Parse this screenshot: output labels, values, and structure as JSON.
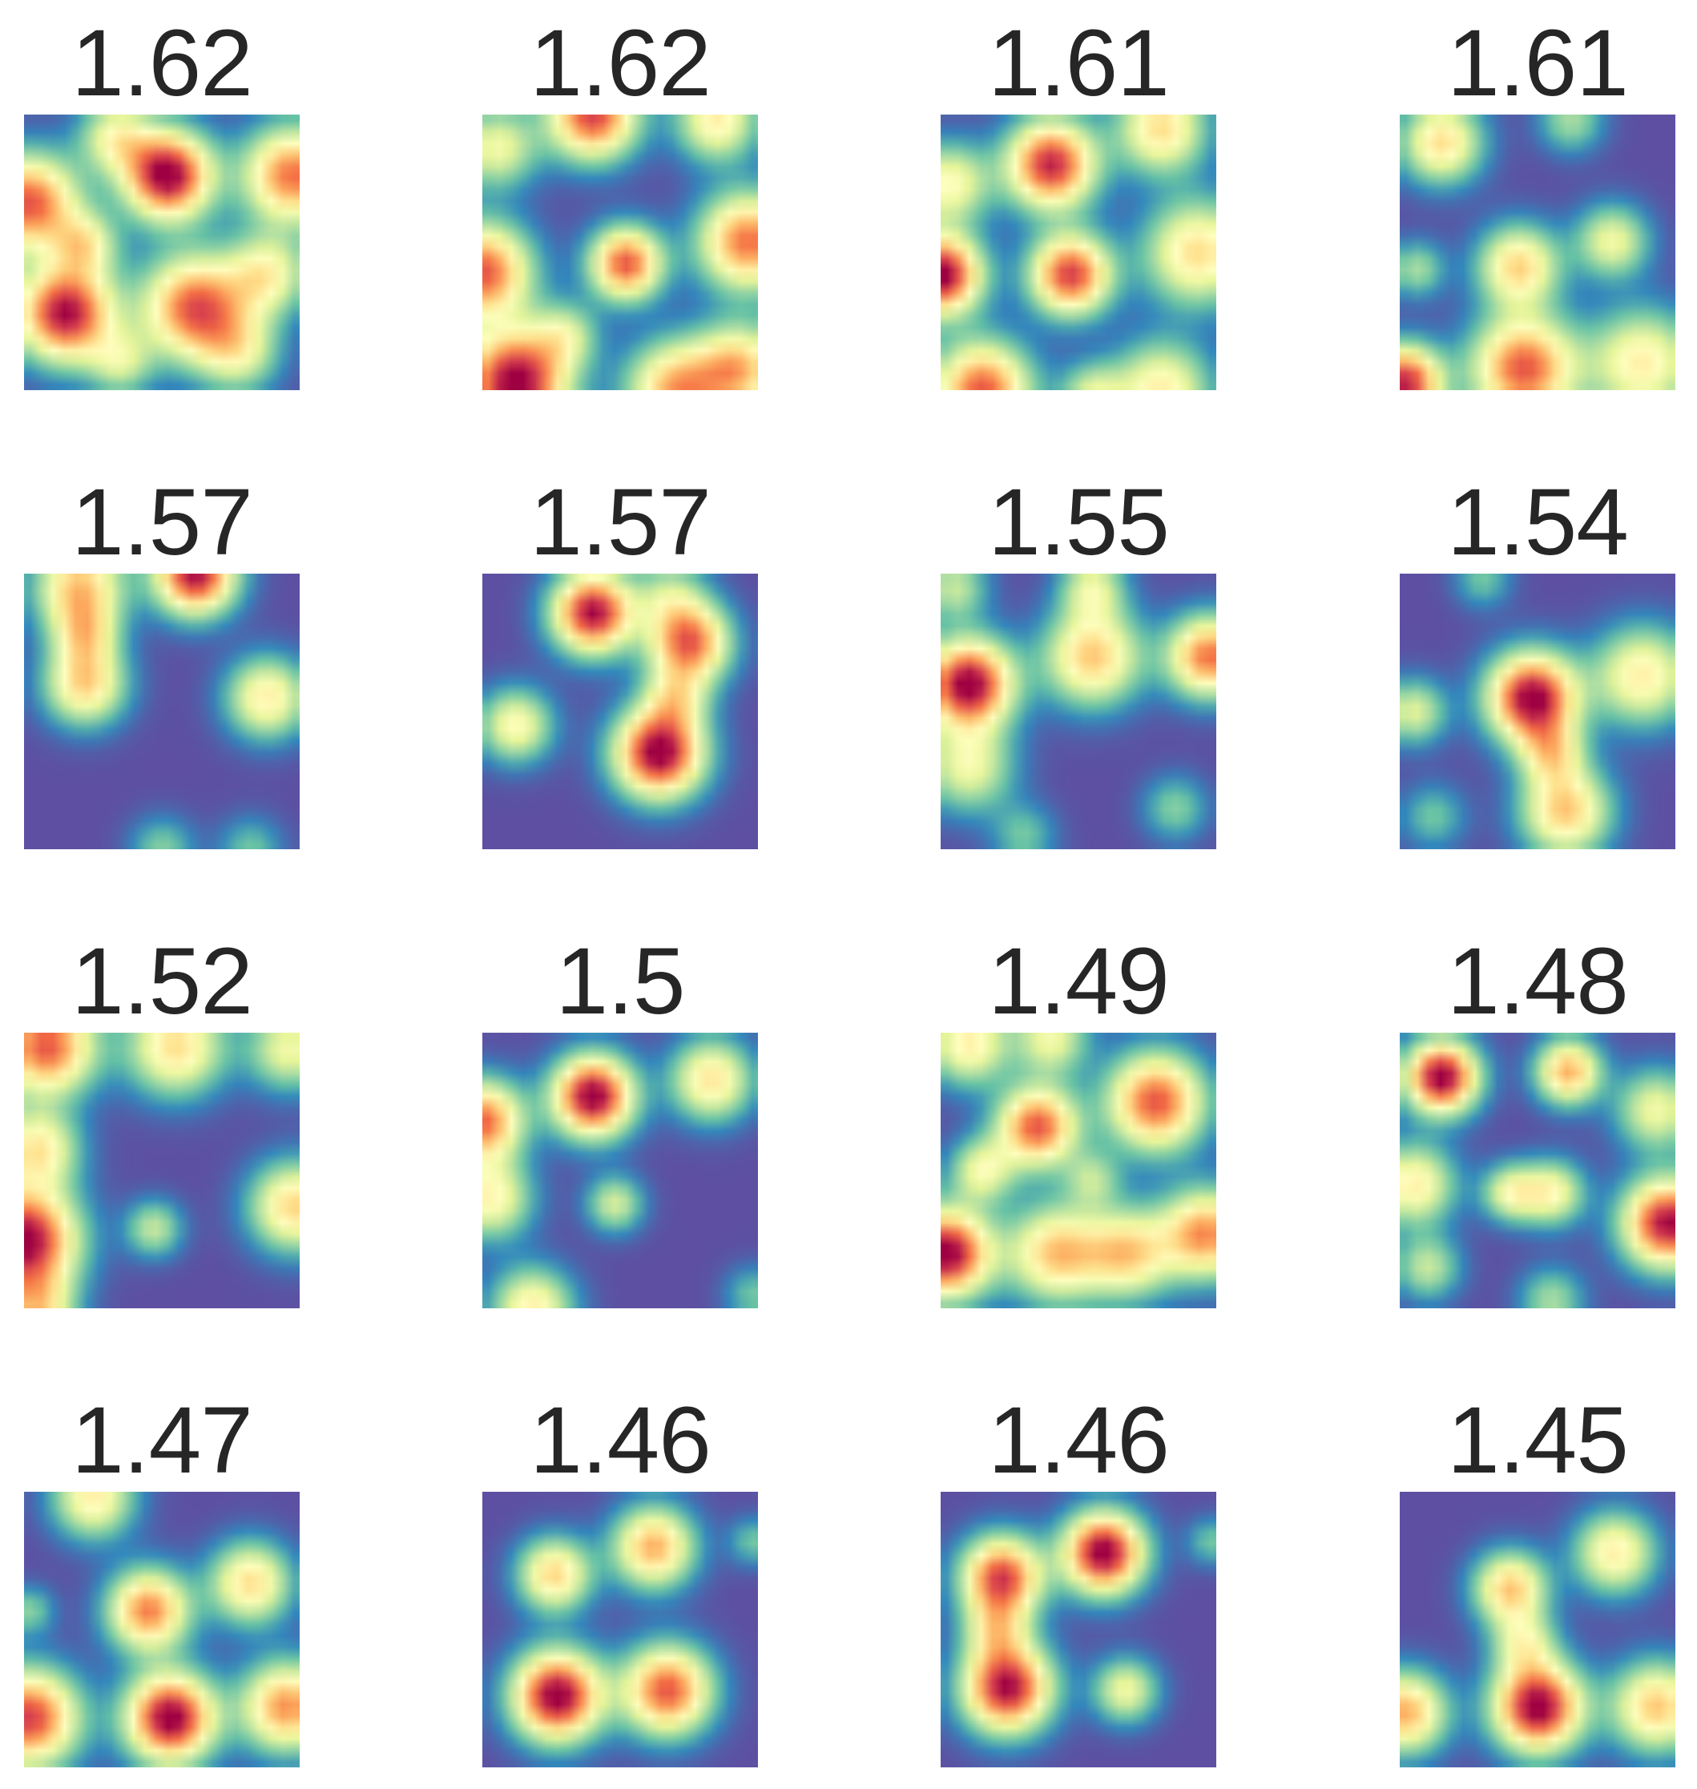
{
  "chart_data": {
    "type": "heatmap",
    "layout": {
      "rows": 4,
      "cols": 4
    },
    "colormap": [
      "#5e4fa2",
      "#3288bd",
      "#66c2a5",
      "#abdda4",
      "#e6f598",
      "#ffffbf",
      "#fee08b",
      "#fdae61",
      "#f46d43",
      "#d53e4f",
      "#9e0142"
    ],
    "background_color": "#5e4fa2",
    "title_color": "#262626",
    "axes_visible": false,
    "panels": [
      {
        "title": "1.62",
        "blobs": [
          {
            "x": 0.52,
            "y": 0.22,
            "a": 1.05,
            "s": 0.11
          },
          {
            "x": 0.15,
            "y": 0.72,
            "a": 1.0,
            "s": 0.12
          },
          {
            "x": 0.62,
            "y": 0.7,
            "a": 0.85,
            "s": 0.13
          },
          {
            "x": 0.02,
            "y": 0.32,
            "a": 0.85,
            "s": 0.12
          },
          {
            "x": 0.97,
            "y": 0.22,
            "a": 0.8,
            "s": 0.12
          },
          {
            "x": 0.33,
            "y": 0.08,
            "a": 0.45,
            "s": 0.09
          },
          {
            "x": 0.22,
            "y": 0.47,
            "a": 0.45,
            "s": 0.08
          },
          {
            "x": 0.88,
            "y": 0.58,
            "a": 0.5,
            "s": 0.1
          },
          {
            "x": 0.35,
            "y": 0.9,
            "a": 0.35,
            "s": 0.08
          },
          {
            "x": 0.78,
            "y": 0.86,
            "a": 0.4,
            "s": 0.1
          }
        ]
      },
      {
        "title": "1.62",
        "blobs": [
          {
            "x": 0.4,
            "y": 0.0,
            "a": 0.9,
            "s": 0.11
          },
          {
            "x": 0.85,
            "y": 0.02,
            "a": 0.55,
            "s": 0.1
          },
          {
            "x": 0.0,
            "y": 0.57,
            "a": 0.85,
            "s": 0.12
          },
          {
            "x": 0.52,
            "y": 0.54,
            "a": 0.85,
            "s": 0.09
          },
          {
            "x": 0.96,
            "y": 0.46,
            "a": 0.8,
            "s": 0.12
          },
          {
            "x": 0.12,
            "y": 0.97,
            "a": 1.05,
            "s": 0.13
          },
          {
            "x": 0.7,
            "y": 1.0,
            "a": 0.7,
            "s": 0.12
          },
          {
            "x": 0.93,
            "y": 0.92,
            "a": 0.65,
            "s": 0.11
          },
          {
            "x": 0.05,
            "y": 0.12,
            "a": 0.45,
            "s": 0.1
          },
          {
            "x": 0.3,
            "y": 0.8,
            "a": 0.35,
            "s": 0.08
          }
        ]
      },
      {
        "title": "1.61",
        "blobs": [
          {
            "x": 0.4,
            "y": 0.18,
            "a": 0.95,
            "s": 0.11
          },
          {
            "x": 0.8,
            "y": 0.05,
            "a": 0.6,
            "s": 0.11
          },
          {
            "x": 0.0,
            "y": 0.58,
            "a": 1.05,
            "s": 0.1
          },
          {
            "x": 0.47,
            "y": 0.58,
            "a": 0.9,
            "s": 0.1
          },
          {
            "x": 0.93,
            "y": 0.5,
            "a": 0.6,
            "s": 0.13
          },
          {
            "x": 0.15,
            "y": 1.0,
            "a": 0.85,
            "s": 0.12
          },
          {
            "x": 0.8,
            "y": 1.0,
            "a": 0.55,
            "s": 0.12
          },
          {
            "x": 0.03,
            "y": 0.25,
            "a": 0.5,
            "s": 0.1
          },
          {
            "x": 0.55,
            "y": 1.02,
            "a": 0.4,
            "s": 0.08
          }
        ]
      },
      {
        "title": "1.61",
        "blobs": [
          {
            "x": 0.15,
            "y": 0.1,
            "a": 0.6,
            "s": 0.1
          },
          {
            "x": 0.43,
            "y": 0.55,
            "a": 0.62,
            "s": 0.1
          },
          {
            "x": 0.77,
            "y": 0.46,
            "a": 0.45,
            "s": 0.09
          },
          {
            "x": 0.02,
            "y": 0.97,
            "a": 0.95,
            "s": 0.09
          },
          {
            "x": 0.45,
            "y": 0.92,
            "a": 0.85,
            "s": 0.13
          },
          {
            "x": 0.88,
            "y": 0.9,
            "a": 0.55,
            "s": 0.13
          },
          {
            "x": 0.06,
            "y": 0.56,
            "a": 0.3,
            "s": 0.07
          },
          {
            "x": 0.62,
            "y": 0.02,
            "a": 0.3,
            "s": 0.08
          }
        ]
      },
      {
        "title": "1.57",
        "blobs": [
          {
            "x": 0.2,
            "y": 0.05,
            "a": 0.65,
            "s": 0.11
          },
          {
            "x": 0.62,
            "y": 0.0,
            "a": 1.0,
            "s": 0.1
          },
          {
            "x": 0.22,
            "y": 0.4,
            "a": 0.62,
            "s": 0.1
          },
          {
            "x": 0.88,
            "y": 0.45,
            "a": 0.55,
            "s": 0.1
          },
          {
            "x": 0.22,
            "y": 0.22,
            "a": 0.4,
            "s": 0.08
          },
          {
            "x": 0.5,
            "y": 1.0,
            "a": 0.25,
            "s": 0.08
          },
          {
            "x": 0.82,
            "y": 1.0,
            "a": 0.22,
            "s": 0.08
          }
        ]
      },
      {
        "title": "1.57",
        "blobs": [
          {
            "x": 0.4,
            "y": 0.14,
            "a": 1.0,
            "s": 0.1
          },
          {
            "x": 0.75,
            "y": 0.25,
            "a": 0.82,
            "s": 0.1
          },
          {
            "x": 0.64,
            "y": 0.65,
            "a": 1.05,
            "s": 0.11
          },
          {
            "x": 0.12,
            "y": 0.55,
            "a": 0.5,
            "s": 0.09
          },
          {
            "x": 0.7,
            "y": 0.45,
            "a": 0.4,
            "s": 0.08
          },
          {
            "x": 0.68,
            "y": 0.08,
            "a": 0.3,
            "s": 0.09
          }
        ]
      },
      {
        "title": "1.55",
        "blobs": [
          {
            "x": 0.1,
            "y": 0.4,
            "a": 1.05,
            "s": 0.11
          },
          {
            "x": 0.55,
            "y": 0.3,
            "a": 0.65,
            "s": 0.12
          },
          {
            "x": 0.97,
            "y": 0.3,
            "a": 0.8,
            "s": 0.1
          },
          {
            "x": 0.1,
            "y": 0.7,
            "a": 0.45,
            "s": 0.11
          },
          {
            "x": 0.55,
            "y": 0.05,
            "a": 0.4,
            "s": 0.08
          },
          {
            "x": 0.05,
            "y": 0.05,
            "a": 0.35,
            "s": 0.08
          },
          {
            "x": 0.85,
            "y": 0.85,
            "a": 0.25,
            "s": 0.08
          },
          {
            "x": 0.3,
            "y": 0.95,
            "a": 0.22,
            "s": 0.08
          }
        ]
      },
      {
        "title": "1.54",
        "blobs": [
          {
            "x": 0.48,
            "y": 0.45,
            "a": 1.05,
            "s": 0.11
          },
          {
            "x": 0.6,
            "y": 0.86,
            "a": 0.65,
            "s": 0.11
          },
          {
            "x": 0.88,
            "y": 0.37,
            "a": 0.55,
            "s": 0.12
          },
          {
            "x": 0.05,
            "y": 0.5,
            "a": 0.4,
            "s": 0.08
          },
          {
            "x": 0.55,
            "y": 0.65,
            "a": 0.45,
            "s": 0.08
          },
          {
            "x": 0.12,
            "y": 0.88,
            "a": 0.22,
            "s": 0.08
          },
          {
            "x": 0.3,
            "y": 0.02,
            "a": 0.22,
            "s": 0.07
          }
        ]
      },
      {
        "title": "1.52",
        "blobs": [
          {
            "x": 0.08,
            "y": 0.05,
            "a": 0.85,
            "s": 0.12
          },
          {
            "x": 0.0,
            "y": 0.75,
            "a": 1.05,
            "s": 0.13
          },
          {
            "x": 0.05,
            "y": 0.42,
            "a": 0.55,
            "s": 0.1
          },
          {
            "x": 0.55,
            "y": 0.05,
            "a": 0.6,
            "s": 0.12
          },
          {
            "x": 0.96,
            "y": 0.06,
            "a": 0.45,
            "s": 0.1
          },
          {
            "x": 0.98,
            "y": 0.63,
            "a": 0.62,
            "s": 0.11
          },
          {
            "x": 0.47,
            "y": 0.71,
            "a": 0.35,
            "s": 0.07
          },
          {
            "x": 0.05,
            "y": 1.0,
            "a": 0.5,
            "s": 0.09
          }
        ]
      },
      {
        "title": "1.5",
        "blobs": [
          {
            "x": 0.4,
            "y": 0.23,
            "a": 1.05,
            "s": 0.1
          },
          {
            "x": 0.83,
            "y": 0.17,
            "a": 0.58,
            "s": 0.1
          },
          {
            "x": 0.0,
            "y": 0.32,
            "a": 0.82,
            "s": 0.1
          },
          {
            "x": 0.03,
            "y": 0.6,
            "a": 0.52,
            "s": 0.1
          },
          {
            "x": 0.48,
            "y": 0.62,
            "a": 0.38,
            "s": 0.07
          },
          {
            "x": 0.18,
            "y": 1.0,
            "a": 0.55,
            "s": 0.1
          },
          {
            "x": 0.98,
            "y": 0.95,
            "a": 0.22,
            "s": 0.07
          }
        ]
      },
      {
        "title": "1.49",
        "blobs": [
          {
            "x": 0.35,
            "y": 0.34,
            "a": 0.85,
            "s": 0.1
          },
          {
            "x": 0.78,
            "y": 0.25,
            "a": 0.85,
            "s": 0.12
          },
          {
            "x": 0.02,
            "y": 0.8,
            "a": 1.05,
            "s": 0.11
          },
          {
            "x": 0.42,
            "y": 0.8,
            "a": 0.65,
            "s": 0.12
          },
          {
            "x": 0.68,
            "y": 0.8,
            "a": 0.6,
            "s": 0.11
          },
          {
            "x": 0.96,
            "y": 0.73,
            "a": 0.75,
            "s": 0.11
          },
          {
            "x": 0.1,
            "y": 0.04,
            "a": 0.55,
            "s": 0.1
          },
          {
            "x": 0.4,
            "y": 0.02,
            "a": 0.45,
            "s": 0.09
          },
          {
            "x": 0.15,
            "y": 0.5,
            "a": 0.45,
            "s": 0.08
          },
          {
            "x": 0.55,
            "y": 0.53,
            "a": 0.3,
            "s": 0.07
          }
        ]
      },
      {
        "title": "1.48",
        "blobs": [
          {
            "x": 0.15,
            "y": 0.16,
            "a": 1.05,
            "s": 0.09
          },
          {
            "x": 0.61,
            "y": 0.14,
            "a": 0.7,
            "s": 0.08
          },
          {
            "x": 0.97,
            "y": 0.69,
            "a": 1.0,
            "s": 0.11
          },
          {
            "x": 0.05,
            "y": 0.55,
            "a": 0.55,
            "s": 0.1
          },
          {
            "x": 0.55,
            "y": 0.58,
            "a": 0.5,
            "s": 0.08
          },
          {
            "x": 0.4,
            "y": 0.58,
            "a": 0.45,
            "s": 0.07
          },
          {
            "x": 0.93,
            "y": 0.28,
            "a": 0.45,
            "s": 0.1
          },
          {
            "x": 0.1,
            "y": 0.85,
            "a": 0.35,
            "s": 0.08
          },
          {
            "x": 0.55,
            "y": 0.97,
            "a": 0.3,
            "s": 0.08
          }
        ]
      },
      {
        "title": "1.47",
        "blobs": [
          {
            "x": 0.25,
            "y": 0.02,
            "a": 0.55,
            "s": 0.1
          },
          {
            "x": 0.45,
            "y": 0.43,
            "a": 0.78,
            "s": 0.1
          },
          {
            "x": 0.82,
            "y": 0.33,
            "a": 0.6,
            "s": 0.1
          },
          {
            "x": 0.02,
            "y": 0.82,
            "a": 0.9,
            "s": 0.12
          },
          {
            "x": 0.53,
            "y": 0.82,
            "a": 1.05,
            "s": 0.11
          },
          {
            "x": 0.95,
            "y": 0.78,
            "a": 0.75,
            "s": 0.11
          },
          {
            "x": 0.02,
            "y": 0.43,
            "a": 0.25,
            "s": 0.06
          }
        ]
      },
      {
        "title": "1.46",
        "blobs": [
          {
            "x": 0.26,
            "y": 0.3,
            "a": 0.62,
            "s": 0.09
          },
          {
            "x": 0.62,
            "y": 0.2,
            "a": 0.7,
            "s": 0.1
          },
          {
            "x": 0.27,
            "y": 0.74,
            "a": 1.05,
            "s": 0.11
          },
          {
            "x": 0.67,
            "y": 0.72,
            "a": 0.85,
            "s": 0.11
          },
          {
            "x": 0.98,
            "y": 0.18,
            "a": 0.22,
            "s": 0.06
          }
        ]
      },
      {
        "title": "1.46",
        "blobs": [
          {
            "x": 0.22,
            "y": 0.31,
            "a": 0.9,
            "s": 0.1
          },
          {
            "x": 0.59,
            "y": 0.22,
            "a": 1.05,
            "s": 0.1
          },
          {
            "x": 0.24,
            "y": 0.71,
            "a": 1.0,
            "s": 0.11
          },
          {
            "x": 0.67,
            "y": 0.72,
            "a": 0.45,
            "s": 0.08
          },
          {
            "x": 0.2,
            "y": 0.5,
            "a": 0.4,
            "s": 0.08
          },
          {
            "x": 0.98,
            "y": 0.18,
            "a": 0.22,
            "s": 0.06
          }
        ]
      },
      {
        "title": "1.45",
        "blobs": [
          {
            "x": 0.4,
            "y": 0.35,
            "a": 0.65,
            "s": 0.09
          },
          {
            "x": 0.78,
            "y": 0.22,
            "a": 0.55,
            "s": 0.1
          },
          {
            "x": 0.02,
            "y": 0.8,
            "a": 0.7,
            "s": 0.1
          },
          {
            "x": 0.5,
            "y": 0.78,
            "a": 1.05,
            "s": 0.11
          },
          {
            "x": 0.93,
            "y": 0.78,
            "a": 0.65,
            "s": 0.11
          },
          {
            "x": 0.45,
            "y": 0.55,
            "a": 0.4,
            "s": 0.08
          }
        ]
      }
    ]
  }
}
